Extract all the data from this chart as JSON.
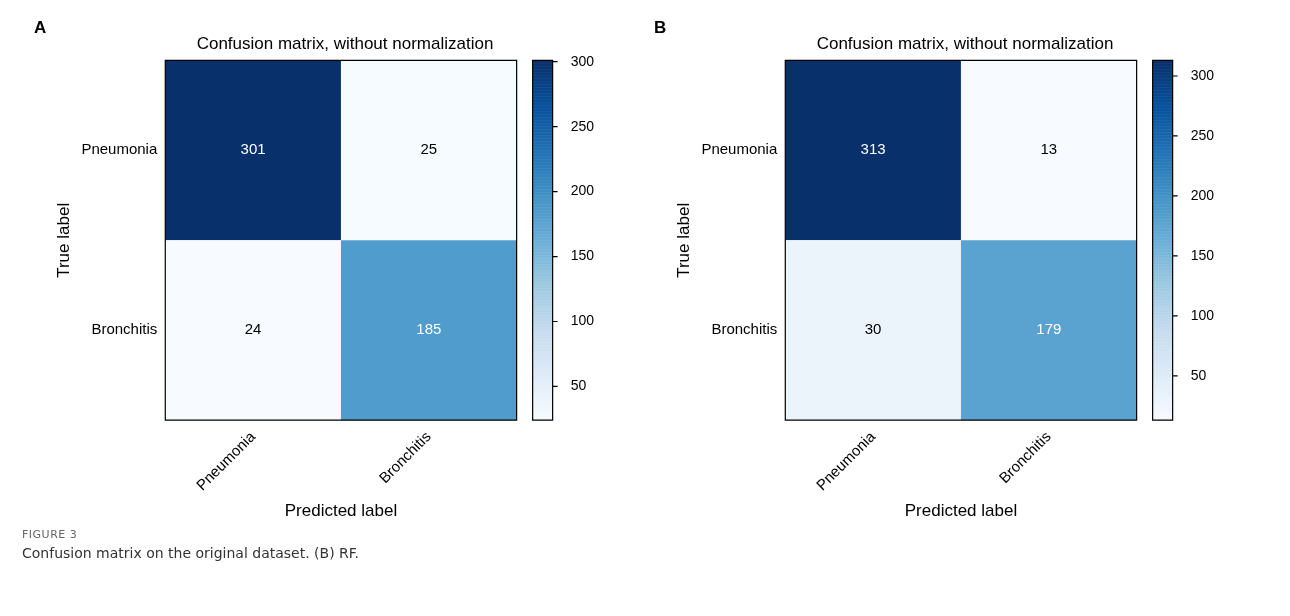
{
  "chart_data": [
    {
      "type": "heatmap",
      "title": "Confusion matrix, without normalization",
      "xlabel": "Predicted label",
      "ylabel": "True label",
      "categories": [
        "Pneumonia",
        "Bronchitis"
      ],
      "y_categories": [
        "Pneumonia",
        "Bronchitis"
      ],
      "cells": [
        [
          301,
          25
        ],
        [
          24,
          185
        ]
      ],
      "data_labels": true,
      "clim": [
        24,
        301
      ],
      "cticks": [
        50,
        100,
        150,
        200,
        250,
        300
      ],
      "annotations": [
        "A",
        "FIGURE 3",
        "Confusion matrix on the original dataset. (B) RF."
      ]
    },
    {
      "type": "heatmap",
      "title": "Confusion matrix, without normalization",
      "xlabel": "Predicted label",
      "ylabel": "True label",
      "categories": [
        "Pneumonia",
        "Bronchitis"
      ],
      "y_categories": [
        "Pneumonia",
        "Bronchitis"
      ],
      "cells": [
        [
          313,
          13
        ],
        [
          30,
          179
        ]
      ],
      "data_labels": true,
      "clim": [
        13,
        313
      ],
      "cticks": [
        50,
        100,
        150,
        200,
        250,
        300
      ],
      "annotations": [
        "B"
      ]
    }
  ]
}
